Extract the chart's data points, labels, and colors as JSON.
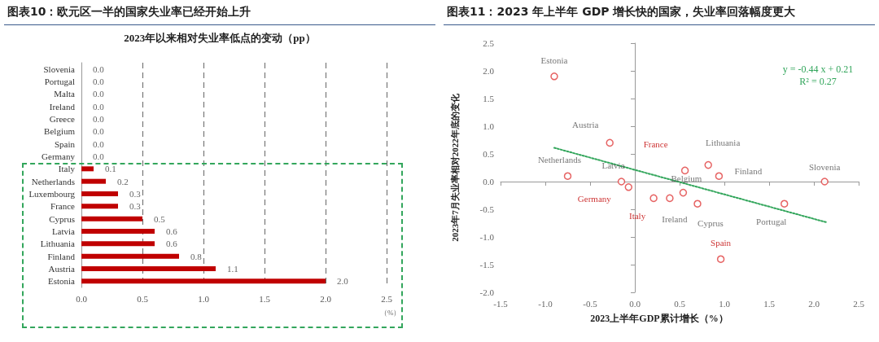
{
  "chart_data": [
    {
      "type": "bar",
      "orientation": "horizontal",
      "title": "图表10：欧元区一半的国家失业率已经开始上升",
      "subtitle": "2023年以来相对失业率低点的变动（pp）",
      "xlabel": "（%）",
      "categories": [
        "Slovenia",
        "Portugal",
        "Malta",
        "Ireland",
        "Greece",
        "Belgium",
        "Spain",
        "Germany",
        "Italy",
        "Netherlands",
        "Luxembourg",
        "France",
        "Cyprus",
        "Latvia",
        "Lithuania",
        "Finland",
        "Austria",
        "Estonia"
      ],
      "values": [
        0,
        0,
        0,
        0,
        0,
        0,
        0,
        0,
        0.1,
        0.2,
        0.3,
        0.3,
        0.5,
        0.6,
        0.6,
        0.8,
        1.1,
        2.0
      ],
      "value_labels": [
        "0.0",
        "0.0",
        "0.0",
        "0.0",
        "0.0",
        "0.0",
        "0.0",
        "0.0",
        "0.1",
        "0.2",
        "0.3",
        "0.3",
        "0.5",
        "0.6",
        "0.6",
        "0.8",
        "1.1",
        "2.0"
      ],
      "color": "#c00000",
      "xlim": [
        0,
        2.5
      ],
      "xticks": [
        {
          "value": 0,
          "label": "0.0"
        },
        {
          "value": 0.5,
          "label": "0.5"
        },
        {
          "value": 1,
          "label": "1.0"
        },
        {
          "value": 1.5,
          "label": "1.5"
        },
        {
          "value": 2,
          "label": "2.0"
        },
        {
          "value": 2.5,
          "label": "2.5"
        }
      ],
      "grid": "x"
    },
    {
      "type": "scatter",
      "title": "图表11：2023 年上半年 GDP 增长快的国家，失业率回落幅度更大",
      "xlabel": "2023上半年GDP累计增长（%）",
      "ylabel": "2023年7月失业率相对2022年底的变化",
      "series": [
        {
          "color": "#e03c3c",
          "x": [
            -0.9,
            -0.28,
            -0.75,
            -0.15,
            0.54,
            0.82,
            0.94,
            2.12,
            0.39,
            0.7,
            1.67
          ],
          "values": [
            1.9,
            0.7,
            0.1,
            0.0,
            -0.2,
            0.3,
            0.1,
            0.0,
            -0.3,
            -0.4,
            -0.4
          ],
          "value_labels": [
            "Estonia",
            "Austria",
            "Netherlands",
            "Latvia",
            "Belgium",
            "Lithuania",
            "Finland",
            "Slovenia",
            "Ireland",
            "Cyprus",
            "Portugal"
          ]
        },
        {
          "color": "#e03c3c",
          "x": [
            0.56,
            -0.07,
            0.21,
            0.96
          ],
          "values": [
            0.2,
            -0.1,
            -0.3,
            -1.4
          ],
          "value_labels": [
            "France",
            "Germany",
            "Italy",
            "Spain"
          ]
        },
        {
          "type": "line",
          "color": "#33a65c",
          "line_style": "dotted",
          "x": [
            -0.9,
            2.15
          ],
          "values": [
            0.61,
            -0.74
          ]
        }
      ],
      "annotations": [
        "y = -0.44 x + 0.21",
        "R² = 0.27"
      ],
      "xlim": [
        -1.5,
        2.5
      ],
      "xticks": [
        {
          "value": -1.5,
          "label": "-1.5"
        },
        {
          "value": -1,
          "label": "-1.0"
        },
        {
          "value": -0.5,
          "label": "-0.5"
        },
        {
          "value": 0,
          "label": "0.0"
        },
        {
          "value": 0.5,
          "label": "0.5"
        },
        {
          "value": 1,
          "label": "1.0"
        },
        {
          "value": 1.5,
          "label": "1.5"
        },
        {
          "value": 2,
          "label": "2.0"
        },
        {
          "value": 2.5,
          "label": "2.5"
        }
      ],
      "ylim": [
        -2,
        2.5
      ],
      "yticks": [
        {
          "value": -2,
          "label": "-2.0"
        },
        {
          "value": -1.5,
          "label": "-1.5"
        },
        {
          "value": -1,
          "label": "-1.0"
        },
        {
          "value": -0.5,
          "label": "-0.5"
        },
        {
          "value": 0,
          "label": "0.0"
        },
        {
          "value": 0.5,
          "label": "0.5"
        },
        {
          "value": 1,
          "label": "1.0"
        },
        {
          "value": 1.5,
          "label": "1.5"
        },
        {
          "value": 2,
          "label": "2.0"
        },
        {
          "value": 2.5,
          "label": "2.5"
        }
      ]
    }
  ]
}
